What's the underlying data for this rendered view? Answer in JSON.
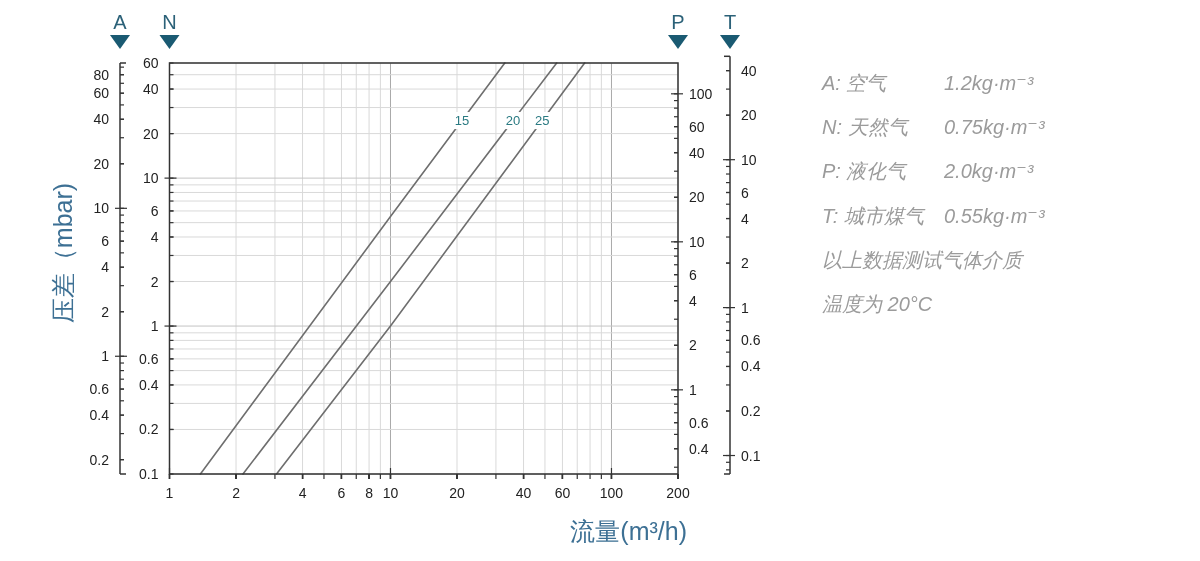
{
  "chart_data": [
    {
      "type": "line",
      "title": "A",
      "ylabel": "压差（mbar)",
      "log": "xy",
      "xlim": [
        1,
        200
      ],
      "xticks": [
        1,
        2,
        4,
        6,
        8,
        10,
        20,
        40,
        60,
        100,
        200
      ],
      "ylim": [
        0.16,
        96
      ],
      "yticks": [
        0.2,
        0.4,
        0.6,
        1,
        2,
        4,
        6,
        10,
        20,
        40,
        60,
        80
      ],
      "tick_labels": "y"
    },
    {
      "type": "line",
      "xlabel": "流量(m³/h)",
      "ylabel": "N",
      "log": "xy",
      "xlim": [
        1,
        200
      ],
      "xticks": [
        1,
        2,
        4,
        6,
        8,
        10,
        20,
        40,
        60,
        100,
        200
      ],
      "ylim": [
        0.1,
        60
      ],
      "yticks": [
        0.1,
        0.2,
        0.4,
        0.6,
        1,
        2,
        4,
        6,
        10,
        20,
        40,
        60
      ],
      "grid": true,
      "line_style": "solid",
      "series": [
        {
          "name": "15",
          "color": "#6e6e6e",
          "x": [
            1.38,
            10,
            32.9
          ],
          "values": [
            0.1,
            5.5,
            60
          ]
        },
        {
          "name": "20",
          "color": "#6e6e6e",
          "x": [
            2.15,
            10,
            56.5
          ],
          "values": [
            0.1,
            2.0,
            60
          ]
        },
        {
          "name": "25",
          "color": "#6e6e6e",
          "x": [
            3.05,
            10,
            75.6
          ],
          "values": [
            0.1,
            1.0,
            60
          ]
        }
      ],
      "annotations": [
        "A: 空气  1.2kg·m⁻³",
        "N: 天然气  0.75kg·m⁻³",
        "P: 液化气  2.0kg·m⁻³",
        "T: 城市煤气  0.55kg·m⁻³",
        "以上数据测试气体介质",
        "温度为 20°C"
      ]
    },
    {
      "type": "line",
      "title": "P",
      "log": "xy",
      "xlim": [
        1,
        200
      ],
      "xticks": [
        1,
        2,
        4,
        6,
        8,
        10,
        20,
        40,
        60,
        100,
        200
      ],
      "ylim": [
        0.27,
        160
      ],
      "yticks": [
        0.4,
        0.6,
        1,
        2,
        4,
        6,
        10,
        20,
        40,
        60,
        100
      ],
      "tick_labels": "y"
    },
    {
      "type": "line",
      "title": "T",
      "log": "xy",
      "xlim": [
        1,
        200
      ],
      "xticks": [
        1,
        2,
        4,
        6,
        8,
        10,
        20,
        40,
        60,
        100,
        200
      ],
      "ylim": [
        0.075,
        50
      ],
      "yticks": [
        0.1,
        0.2,
        0.4,
        0.6,
        1,
        2,
        4,
        6,
        10,
        20,
        40
      ],
      "tick_labels": "y"
    }
  ]
}
